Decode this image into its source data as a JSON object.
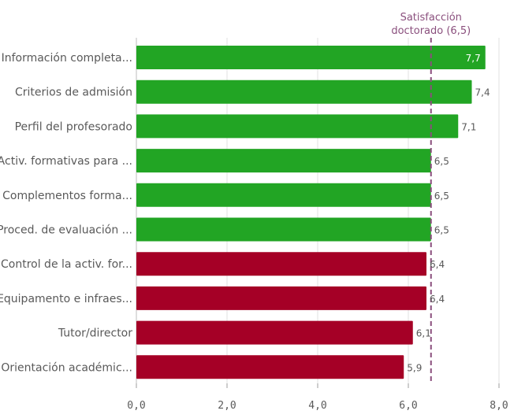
{
  "chart_data": {
    "type": "bar",
    "orientation": "horizontal",
    "categories": [
      "Información completa...",
      "Criterios de admisión",
      "Perfil del profesorado",
      "Activ. formativas para ...",
      "Complementos forma...",
      "Proced. de evaluación ...",
      "Control de la activ. for...",
      "Equipamento e infraes...",
      "Tutor/director",
      "Orientación académic..."
    ],
    "values": [
      7.7,
      7.4,
      7.1,
      6.5,
      6.5,
      6.5,
      6.4,
      6.4,
      6.1,
      5.9
    ],
    "value_labels": [
      "7,7",
      "7,4",
      "7,1",
      "6,5",
      "6,5",
      "6,5",
      "6,4",
      "6,4",
      "6,1",
      "5,9"
    ],
    "bar_colors": [
      "#22a524",
      "#22a524",
      "#22a524",
      "#22a524",
      "#22a524",
      "#22a524",
      "#a50026",
      "#a50026",
      "#a50026",
      "#a50026"
    ],
    "xlim": [
      0,
      8
    ],
    "x_ticks": [
      0,
      2,
      4,
      6,
      8
    ],
    "x_tick_labels": [
      "0,0",
      "2,0",
      "4,0",
      "6,0",
      "8,0"
    ],
    "grid": true,
    "reference_line": {
      "value": 6.5,
      "label_lines": [
        "Satisfacción",
        "doctorado (6,5)"
      ],
      "color": "#8a4f7d",
      "style": "dashed"
    },
    "colors": {
      "above": "#22a524",
      "below": "#a50026",
      "grid": "#e0e0e0",
      "text": "#595959"
    }
  }
}
